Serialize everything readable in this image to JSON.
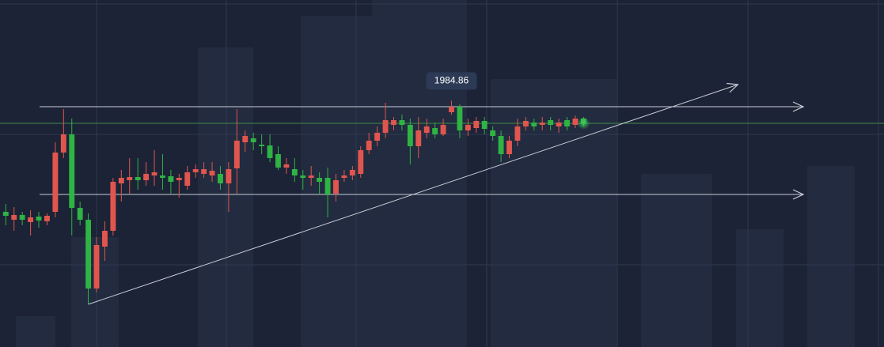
{
  "chart_data": {
    "type": "candlestick",
    "up_color": "#e0564f",
    "down_color": "#2fb344",
    "level_color": "#c8ccd6",
    "price_line_color": "#3d8c4a",
    "xlim": [
      -0.7,
      106.4
    ],
    "ylim": [
      1953.7,
      1997.6
    ],
    "open": [
      1970.8,
      1969.8,
      1970.4,
      1969.5,
      1970.2,
      1969.6,
      1970.8,
      1978.3,
      1980.6,
      1971.3,
      1969.8,
      1961.1,
      1966.4,
      1968.4,
      1974.4,
      1974.8,
      1975.2,
      1974.8,
      1975.4,
      1975.4,
      1975.3,
      1974.8,
      1974.1,
      1975.8,
      1975.6,
      1975.4,
      1975.6,
      1974.4,
      1976.3,
      1979.6,
      1980.1,
      1979.3,
      1979.2,
      1978.1,
      1976.4,
      1976.2,
      1975.4,
      1975.1,
      1975.1,
      1975.1,
      1973.1,
      1975.1,
      1975.4,
      1975.6,
      1978.6,
      1979.8,
      1980.8,
      1981.8,
      1982.4,
      1981.8,
      1979.1,
      1980.8,
      1981.4,
      1980.6,
      1983.4,
      1984.1,
      1981.1,
      1981.4,
      1982.3,
      1981.1,
      1980.4,
      1978.1,
      1979.8,
      1981.6,
      1982.1,
      1981.8,
      1982.4,
      1981.6,
      1982.4,
      1981.8,
      1982.6
    ],
    "close": [
      1970.3,
      1970.4,
      1969.8,
      1970.1,
      1969.7,
      1970.3,
      1978.3,
      1980.6,
      1971.3,
      1969.8,
      1961.1,
      1966.6,
      1968.4,
      1974.6,
      1975.1,
      1975.2,
      1974.8,
      1975.6,
      1975.8,
      1975.1,
      1974.6,
      1975.1,
      1975.8,
      1976.2,
      1976.2,
      1976.0,
      1974.4,
      1976.2,
      1979.8,
      1980.4,
      1979.6,
      1979.1,
      1977.6,
      1976.4,
      1976.8,
      1975.4,
      1975.1,
      1975.4,
      1974.6,
      1973.0,
      1974.8,
      1975.4,
      1976.1,
      1978.6,
      1979.8,
      1980.8,
      1982.4,
      1982.4,
      1981.8,
      1979.1,
      1981.1,
      1981.6,
      1980.6,
      1981.8,
      1984.1,
      1981.1,
      1981.8,
      1982.3,
      1981.3,
      1980.4,
      1978.1,
      1979.8,
      1981.6,
      1982.3,
      1981.6,
      1982.1,
      1981.8,
      1982.1,
      1981.6,
      1982.6,
      1982.0
    ],
    "high": [
      1971.8,
      1971.4,
      1970.8,
      1971.0,
      1970.8,
      1970.6,
      1979.6,
      1983.8,
      1982.6,
      1972.1,
      1970.6,
      1967.6,
      1969.6,
      1975.1,
      1976.1,
      1977.6,
      1977.6,
      1977.1,
      1978.6,
      1978.1,
      1976.1,
      1975.6,
      1976.6,
      1976.8,
      1977.1,
      1977.1,
      1976.6,
      1977.1,
      1983.8,
      1981.1,
      1980.8,
      1980.6,
      1980.6,
      1979.1,
      1977.6,
      1977.6,
      1976.1,
      1976.6,
      1975.8,
      1976.4,
      1975.6,
      1976.1,
      1976.6,
      1979.1,
      1980.8,
      1981.6,
      1984.6,
      1982.8,
      1983.1,
      1982.6,
      1982.8,
      1982.6,
      1982.1,
      1982.6,
      1984.86,
      1984.4,
      1982.6,
      1982.8,
      1982.8,
      1981.6,
      1981.1,
      1980.4,
      1982.6,
      1982.8,
      1982.6,
      1982.8,
      1982.8,
      1982.6,
      1982.8,
      1983.0,
      1982.8
    ],
    "low": [
      1969.1,
      1968.4,
      1969.1,
      1967.8,
      1968.8,
      1969.1,
      1970.1,
      1977.6,
      1967.8,
      1969.1,
      1959.1,
      1960.6,
      1964.6,
      1967.8,
      1972.1,
      1973.1,
      1973.6,
      1974.1,
      1974.1,
      1973.6,
      1973.1,
      1972.6,
      1973.6,
      1975.1,
      1975.1,
      1974.6,
      1973.6,
      1970.8,
      1973.1,
      1978.4,
      1978.6,
      1978.1,
      1977.1,
      1976.1,
      1975.6,
      1974.6,
      1973.6,
      1974.1,
      1973.1,
      1970.1,
      1972.1,
      1974.6,
      1974.8,
      1975.1,
      1978.1,
      1979.1,
      1980.1,
      1981.1,
      1981.1,
      1976.8,
      1977.6,
      1980.1,
      1980.1,
      1980.4,
      1983.1,
      1980.1,
      1980.4,
      1980.8,
      1980.6,
      1979.8,
      1977.1,
      1977.6,
      1979.1,
      1981.1,
      1981.1,
      1981.1,
      1981.1,
      1980.8,
      1981.1,
      1981.4,
      1981.6
    ],
    "levels": [
      1984.1,
      1973.0
    ],
    "trendline": {
      "x": [
        10,
        88.7
      ],
      "y": [
        1959.1,
        1986.9
      ]
    },
    "annotation_index": 54
  }
}
